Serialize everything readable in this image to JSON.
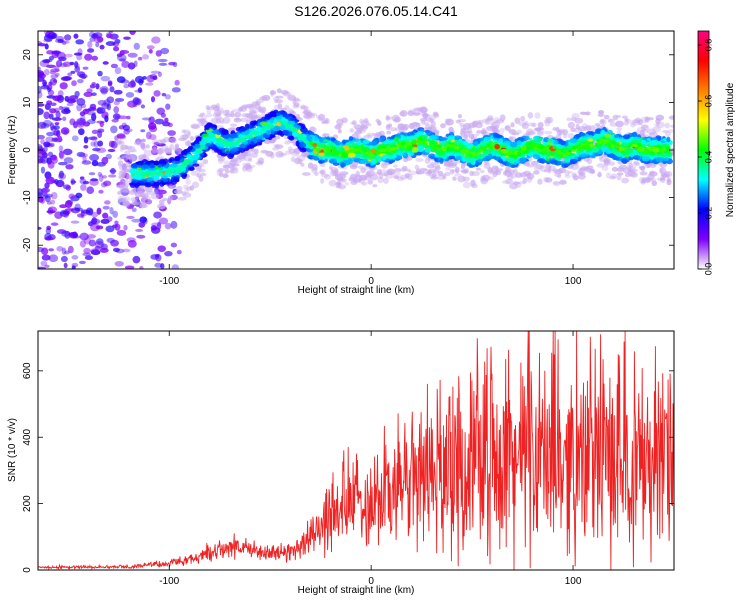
{
  "title": "S126.2026.076.05.14.C41",
  "chart_data": [
    {
      "type": "heatmap",
      "xlabel": "Height of straight line (km)",
      "ylabel": "Frequency (Hz)",
      "xlim": [
        -165,
        150
      ],
      "ylim": [
        -25,
        25
      ],
      "xticks": [
        -100,
        0,
        100
      ],
      "yticks": [
        -20,
        -10,
        0,
        10,
        20
      ],
      "colorbar": {
        "label": "Normalized spectral amplitude",
        "range": [
          0.0,
          0.85
        ],
        "ticks": [
          "0.0",
          "0.2",
          "0.4",
          "0.6",
          "0.8"
        ],
        "stops": [
          "#ffffff",
          "#7f00ff",
          "#0000ff",
          "#00ffff",
          "#00ff00",
          "#ffff00",
          "#ff8000",
          "#ff0000",
          "#ff0080"
        ]
      },
      "ridge": {
        "x": [
          -115,
          -105,
          -95,
          -90,
          -85,
          -80,
          -75,
          -70,
          -65,
          -60,
          -55,
          -50,
          -45,
          -40,
          -35,
          -30,
          -25,
          -20,
          -15,
          -10,
          -5,
          0,
          5,
          10,
          15,
          20,
          25,
          30,
          35,
          40,
          45,
          50,
          55,
          60,
          65,
          70,
          75,
          80,
          85,
          90,
          95,
          100,
          105,
          110,
          115,
          120,
          125,
          130,
          135,
          140,
          145
        ],
        "y": [
          -5,
          -5,
          -4,
          -2,
          0,
          3,
          2,
          1,
          2,
          3,
          4,
          5,
          6,
          5,
          3,
          1,
          0,
          0,
          -1,
          0,
          0,
          -1,
          0,
          0,
          1,
          1,
          2,
          1,
          0,
          1,
          0,
          -1,
          0,
          1,
          0,
          -1,
          0,
          1,
          0,
          0,
          -1,
          0,
          1,
          1,
          2,
          1,
          0,
          1,
          0,
          0,
          0
        ]
      }
    },
    {
      "type": "line",
      "xlabel": "Height of straight line (km)",
      "ylabel": "SNR (10 * v/v)",
      "xlim": [
        -165,
        150
      ],
      "ylim": [
        0,
        720
      ],
      "xticks": [
        -100,
        0,
        100
      ],
      "yticks": [
        0,
        200,
        400,
        600
      ],
      "color": "#ee2222",
      "envelope": {
        "x": [
          -165,
          -120,
          -100,
          -90,
          -80,
          -70,
          -60,
          -50,
          -40,
          -30,
          -20,
          -10,
          0,
          10,
          20,
          30,
          40,
          60,
          80,
          100,
          120,
          150
        ],
        "mean": [
          8,
          10,
          20,
          30,
          50,
          70,
          60,
          50,
          55,
          100,
          150,
          200,
          220,
          240,
          270,
          300,
          320,
          330,
          340,
          330,
          340,
          330
        ],
        "amplitude": [
          4,
          5,
          10,
          15,
          25,
          35,
          30,
          25,
          30,
          60,
          100,
          130,
          160,
          190,
          220,
          250,
          270,
          280,
          300,
          280,
          300,
          290
        ]
      }
    }
  ]
}
